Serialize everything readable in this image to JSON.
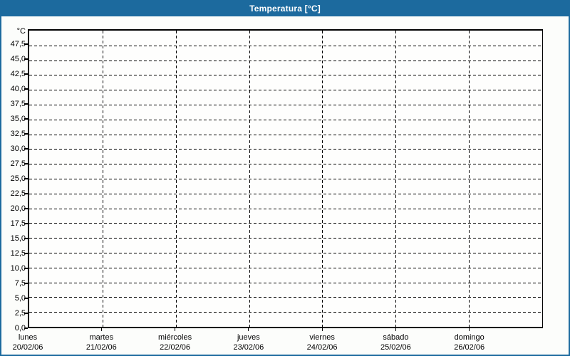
{
  "window": {
    "title": "Temperatura [°C]"
  },
  "colors": {
    "titlebar_bg": "#1c6a9e",
    "titlebar_text": "#ffffff",
    "window_border": "#1c6a9e",
    "plot_border": "#000000",
    "gridline": "#000000",
    "label_text": "#000000",
    "background": "#fcfdfb",
    "plot_background": "#fefefd"
  },
  "chart_data": {
    "type": "line",
    "title": "Temperatura [°C]",
    "grid": "dashed",
    "legend": "none",
    "series": [],
    "y_axis": {
      "unit_label": "°C",
      "min": 0,
      "max": 50,
      "tick_step": 2.5,
      "tick_labels": [
        "0,0",
        "2,5",
        "5,0",
        "7,5",
        "10,0",
        "12,5",
        "15,0",
        "17,5",
        "20,0",
        "22,5",
        "25,0",
        "27,5",
        "30,0",
        "32,5",
        "35,0",
        "37,5",
        "40,0",
        "42,5",
        "45,0",
        "47,5"
      ]
    },
    "x_axis": {
      "categories": [
        {
          "day": "lunes",
          "date": "20/02/06"
        },
        {
          "day": "martes",
          "date": "21/02/06"
        },
        {
          "day": "miércoles",
          "date": "22/02/06"
        },
        {
          "day": "jueves",
          "date": "23/02/06"
        },
        {
          "day": "viernes",
          "date": "24/02/06"
        },
        {
          "day": "sábado",
          "date": "25/02/06"
        },
        {
          "day": "domingo",
          "date": "26/02/06"
        }
      ]
    }
  }
}
